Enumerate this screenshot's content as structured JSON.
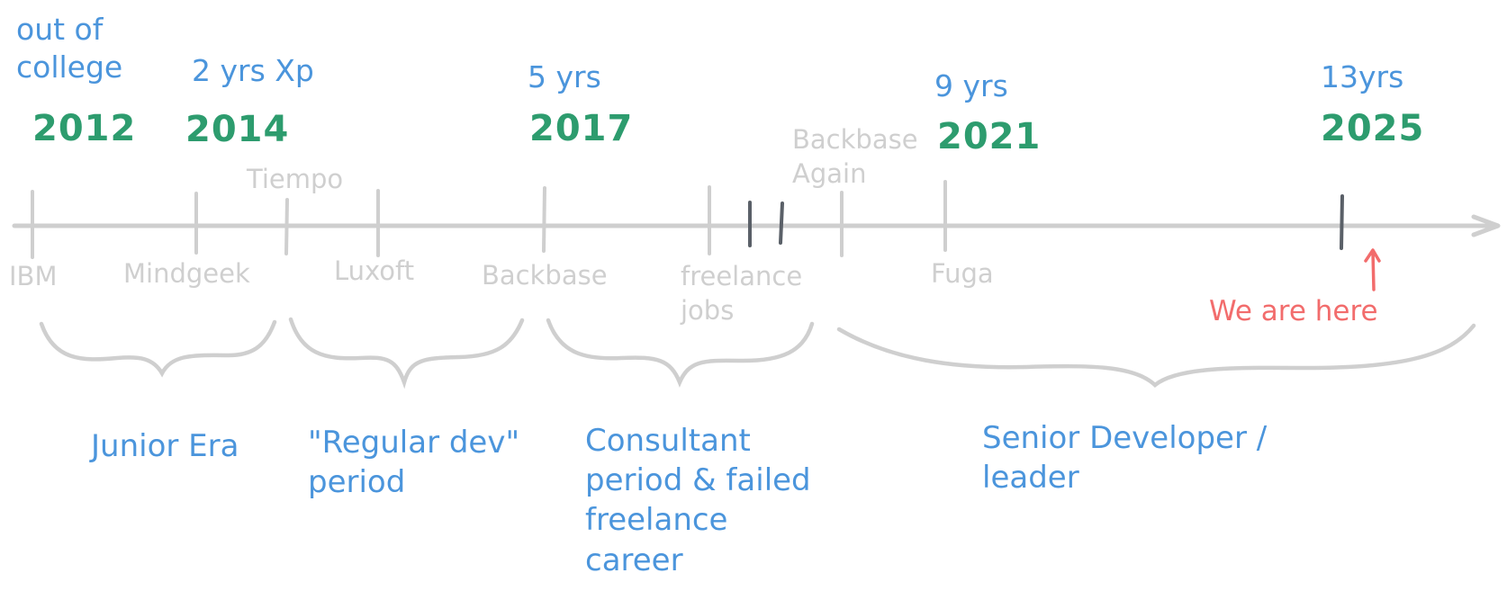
{
  "milestones": {
    "m1": {
      "note": "out of\ncollege",
      "year": "2012"
    },
    "m2": {
      "note": "2 yrs Xp",
      "year": "2014"
    },
    "m3": {
      "note": "5 yrs",
      "year": "2017"
    },
    "m4": {
      "note": "9 yrs",
      "year": "2021"
    },
    "m5": {
      "note": "13yrs",
      "year": "2025"
    }
  },
  "companies": {
    "ibm": "IBM",
    "mindgeek": "Mindgeek",
    "tiempo": "Tiempo",
    "luxoft": "Luxoft",
    "backbase": "Backbase",
    "freelance": "freelance\njobs",
    "backbase_again": "Backbase\nAgain",
    "fuga": "Fuga"
  },
  "marker": {
    "label": "We are here"
  },
  "eras": {
    "junior": "Junior Era",
    "regular": "\"Regular dev\"\nperiod",
    "consultant": "Consultant\nperiod & failed\nfreelance\ncareer",
    "senior": "Senior Developer /\nleader"
  },
  "colors": {
    "blue": "#4b95dc",
    "green": "#2d9c6e",
    "grey": "#cfcfcf",
    "dark_tick": "#5a6068",
    "red": "#f26c6c"
  }
}
